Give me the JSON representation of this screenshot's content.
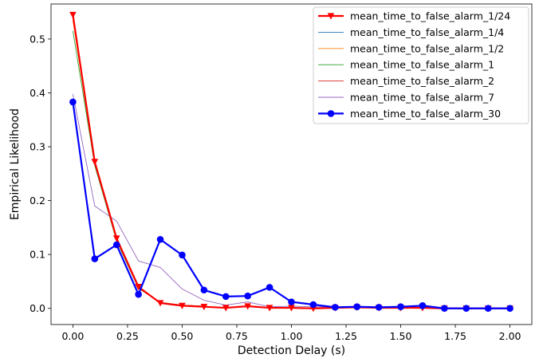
{
  "chart_data": {
    "type": "line",
    "title": "",
    "xlabel": "Detection Delay (s)",
    "ylabel": "Empirical Likelihood",
    "xlim": [
      -0.1,
      2.1
    ],
    "ylim": [
      -0.03,
      0.565
    ],
    "xticks": [
      "0.00",
      "0.25",
      "0.50",
      "0.75",
      "1.00",
      "1.25",
      "1.50",
      "1.75",
      "2.00"
    ],
    "yticks": [
      "0.0",
      "0.1",
      "0.2",
      "0.3",
      "0.4",
      "0.5"
    ],
    "grid": false,
    "legend_position": "top-right",
    "x": [
      0.0,
      0.1,
      0.2,
      0.3,
      0.4,
      0.5,
      0.6,
      0.7,
      0.8,
      0.9,
      1.0,
      1.1,
      1.2,
      1.3,
      1.4,
      1.5,
      1.6,
      1.7,
      1.8,
      1.9,
      2.0
    ],
    "series": [
      {
        "name": "mean_time_to_false_alarm_1/24",
        "color": "#ff0000",
        "marker": "triangle-down",
        "emphasis": true,
        "values": [
          0.545,
          0.272,
          0.13,
          0.04,
          0.01,
          0.005,
          0.003,
          0.001,
          0.004,
          0.001,
          0.001,
          0.0,
          0.001,
          0.002,
          0.001,
          0.001,
          0.001,
          0.0,
          0.0,
          0.0,
          0.0
        ]
      },
      {
        "name": "mean_time_to_false_alarm_1/4",
        "color": "#1f77b4",
        "marker": "none",
        "emphasis": false,
        "values": [
          0.54,
          0.27,
          0.128,
          0.038,
          0.011,
          0.006,
          0.003,
          0.001,
          0.003,
          0.001,
          0.001,
          0.0,
          0.001,
          0.002,
          0.001,
          0.001,
          0.001,
          0.0,
          0.0,
          0.0,
          0.0
        ]
      },
      {
        "name": "mean_time_to_false_alarm_1/2",
        "color": "#ff7f0e",
        "marker": "none",
        "emphasis": false,
        "values": [
          0.535,
          0.268,
          0.126,
          0.039,
          0.011,
          0.006,
          0.004,
          0.001,
          0.003,
          0.001,
          0.001,
          0.0,
          0.001,
          0.002,
          0.001,
          0.001,
          0.001,
          0.0,
          0.0,
          0.0,
          0.0
        ]
      },
      {
        "name": "mean_time_to_false_alarm_1",
        "color": "#2ca02c",
        "marker": "none",
        "emphasis": false,
        "values": [
          0.515,
          0.265,
          0.125,
          0.037,
          0.011,
          0.006,
          0.004,
          0.001,
          0.003,
          0.001,
          0.001,
          0.001,
          0.001,
          0.002,
          0.001,
          0.001,
          0.001,
          0.0,
          0.0,
          0.0,
          0.0
        ]
      },
      {
        "name": "mean_time_to_false_alarm_2",
        "color": "#d62728",
        "marker": "none",
        "emphasis": false,
        "values": [
          0.545,
          0.272,
          0.128,
          0.038,
          0.01,
          0.005,
          0.003,
          0.001,
          0.004,
          0.001,
          0.001,
          0.0,
          0.001,
          0.002,
          0.001,
          0.001,
          0.001,
          0.0,
          0.0,
          0.0,
          0.0
        ]
      },
      {
        "name": "mean_time_to_false_alarm_7",
        "color": "#9467bd",
        "marker": "none",
        "emphasis": false,
        "values": [
          0.398,
          0.19,
          0.162,
          0.088,
          0.076,
          0.036,
          0.015,
          0.006,
          0.012,
          0.003,
          0.004,
          0.003,
          0.002,
          0.002,
          0.002,
          0.003,
          0.002,
          0.001,
          0.001,
          0.001,
          0.001
        ]
      },
      {
        "name": "mean_time_to_false_alarm_30",
        "color": "#0000ff",
        "marker": "circle",
        "emphasis": true,
        "values": [
          0.383,
          0.092,
          0.118,
          0.026,
          0.128,
          0.099,
          0.034,
          0.022,
          0.023,
          0.039,
          0.012,
          0.007,
          0.002,
          0.003,
          0.002,
          0.003,
          0.005,
          0.0,
          0.0,
          0.0,
          0.0
        ]
      }
    ]
  }
}
